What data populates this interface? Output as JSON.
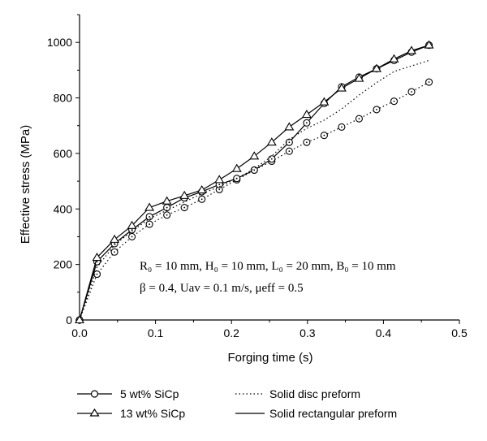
{
  "chart_data": {
    "type": "line",
    "xlabel": "Forging time (s)",
    "ylabel": "Effective stress (MPa)",
    "xlim": [
      0,
      0.5
    ],
    "ylim": [
      0,
      1100
    ],
    "xticks": [
      "0.0",
      "0.1",
      "0.2",
      "0.3",
      "0.4",
      "0.5"
    ],
    "yticks": [
      "0",
      "200",
      "400",
      "600",
      "800",
      "1000"
    ],
    "grid": false,
    "legend_position": "bottom",
    "annotations": [
      "R₀ = 10 mm, H₀ = 10 mm, L₀ = 20 mm, B₀ = 10 mm",
      "β = 0.4, Uav = 0.1 m/s, μeff = 0.5"
    ],
    "legend": {
      "series_5": "5 wt% SiCp",
      "series_13": "13 wt% SiCp",
      "disc": "Solid disc preform",
      "rect": "Solid rectangular preform"
    },
    "series": [
      {
        "name": "5 wt% SiCp",
        "preform": "Solid disc preform",
        "marker": "circle",
        "style": "dotted",
        "x": [
          0,
          0.023,
          0.046,
          0.069,
          0.092,
          0.115,
          0.138,
          0.161,
          0.184,
          0.207,
          0.23,
          0.253,
          0.276,
          0.299,
          0.322,
          0.345,
          0.368,
          0.391,
          0.414,
          0.437,
          0.46
        ],
        "y": [
          0,
          165,
          245,
          300,
          345,
          378,
          405,
          435,
          470,
          505,
          540,
          572,
          608,
          640,
          665,
          695,
          725,
          758,
          788,
          822,
          857
        ]
      },
      {
        "name": "5 wt% SiCp",
        "preform": "Solid rectangular preform",
        "marker": "circle",
        "style": "solid",
        "x": [
          0,
          0.023,
          0.046,
          0.069,
          0.092,
          0.115,
          0.138,
          0.161,
          0.184,
          0.207,
          0.23,
          0.253,
          0.276,
          0.299,
          0.322,
          0.345,
          0.368,
          0.391,
          0.414,
          0.437,
          0.46
        ],
        "y": [
          0,
          210,
          275,
          325,
          372,
          405,
          440,
          462,
          488,
          510,
          540,
          580,
          640,
          710,
          780,
          840,
          875,
          905,
          935,
          965,
          990
        ]
      },
      {
        "name": "13 wt% SiCp",
        "preform": "Solid disc preform",
        "marker": "none",
        "style": "dotted",
        "x": [
          0,
          0.023,
          0.046,
          0.069,
          0.092,
          0.115,
          0.138,
          0.161,
          0.184,
          0.207,
          0.23,
          0.253,
          0.276,
          0.299,
          0.322,
          0.345,
          0.368,
          0.391,
          0.414,
          0.437,
          0.46
        ],
        "y": [
          0,
          190,
          270,
          320,
          365,
          395,
          425,
          455,
          480,
          510,
          545,
          590,
          650,
          690,
          720,
          760,
          810,
          855,
          895,
          915,
          935
        ]
      },
      {
        "name": "13 wt% SiCp",
        "preform": "Solid rectangular preform",
        "marker": "triangle",
        "style": "solid",
        "x": [
          0,
          0.023,
          0.046,
          0.069,
          0.092,
          0.115,
          0.138,
          0.161,
          0.184,
          0.207,
          0.23,
          0.253,
          0.276,
          0.299,
          0.322,
          0.345,
          0.368,
          0.391,
          0.414,
          0.437,
          0.46
        ],
        "y": [
          0,
          225,
          290,
          340,
          405,
          428,
          448,
          468,
          505,
          545,
          590,
          640,
          695,
          740,
          785,
          835,
          870,
          905,
          940,
          970,
          990
        ]
      }
    ]
  }
}
